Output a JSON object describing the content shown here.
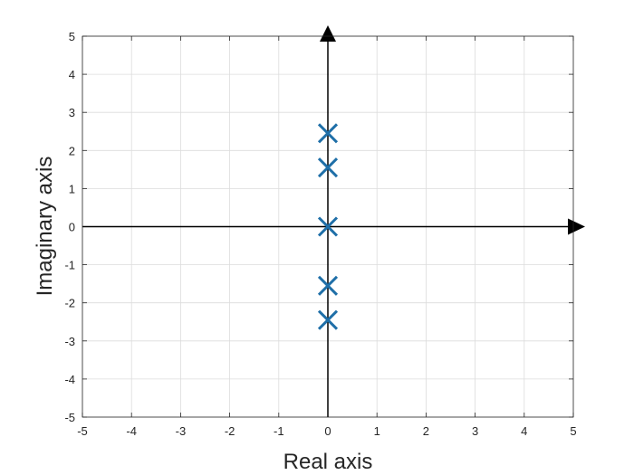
{
  "chart_data": {
    "type": "scatter",
    "title": "",
    "xlabel": "Real axis",
    "ylabel": "Imaginary axis",
    "xlim": [
      -5,
      5
    ],
    "ylim": [
      -5,
      5
    ],
    "xticks": [
      -5,
      -4,
      -3,
      -2,
      -1,
      0,
      1,
      2,
      3,
      4,
      5
    ],
    "yticks": [
      -5,
      -4,
      -3,
      -2,
      -1,
      0,
      1,
      2,
      3,
      4,
      5
    ],
    "xtick_labels": [
      "-5",
      "-4",
      "-3",
      "-2",
      "-1",
      "0",
      "1",
      "2",
      "3",
      "4",
      "5"
    ],
    "ytick_labels": [
      "-5",
      "-4",
      "-3",
      "-2",
      "-1",
      "0",
      "1",
      "2",
      "3",
      "4",
      "5"
    ],
    "grid": true,
    "marker": "x",
    "series": [
      {
        "points": [
          {
            "x": 0,
            "y": 2.45
          },
          {
            "x": 0,
            "y": 1.55
          },
          {
            "x": 0,
            "y": 0
          },
          {
            "x": 0,
            "y": -1.55
          },
          {
            "x": 0,
            "y": -2.45
          }
        ]
      }
    ],
    "colors": {
      "marker": "#1f6fa8",
      "axes": "#000000",
      "grid": "#dcdcdc",
      "frame": "#262626"
    }
  }
}
